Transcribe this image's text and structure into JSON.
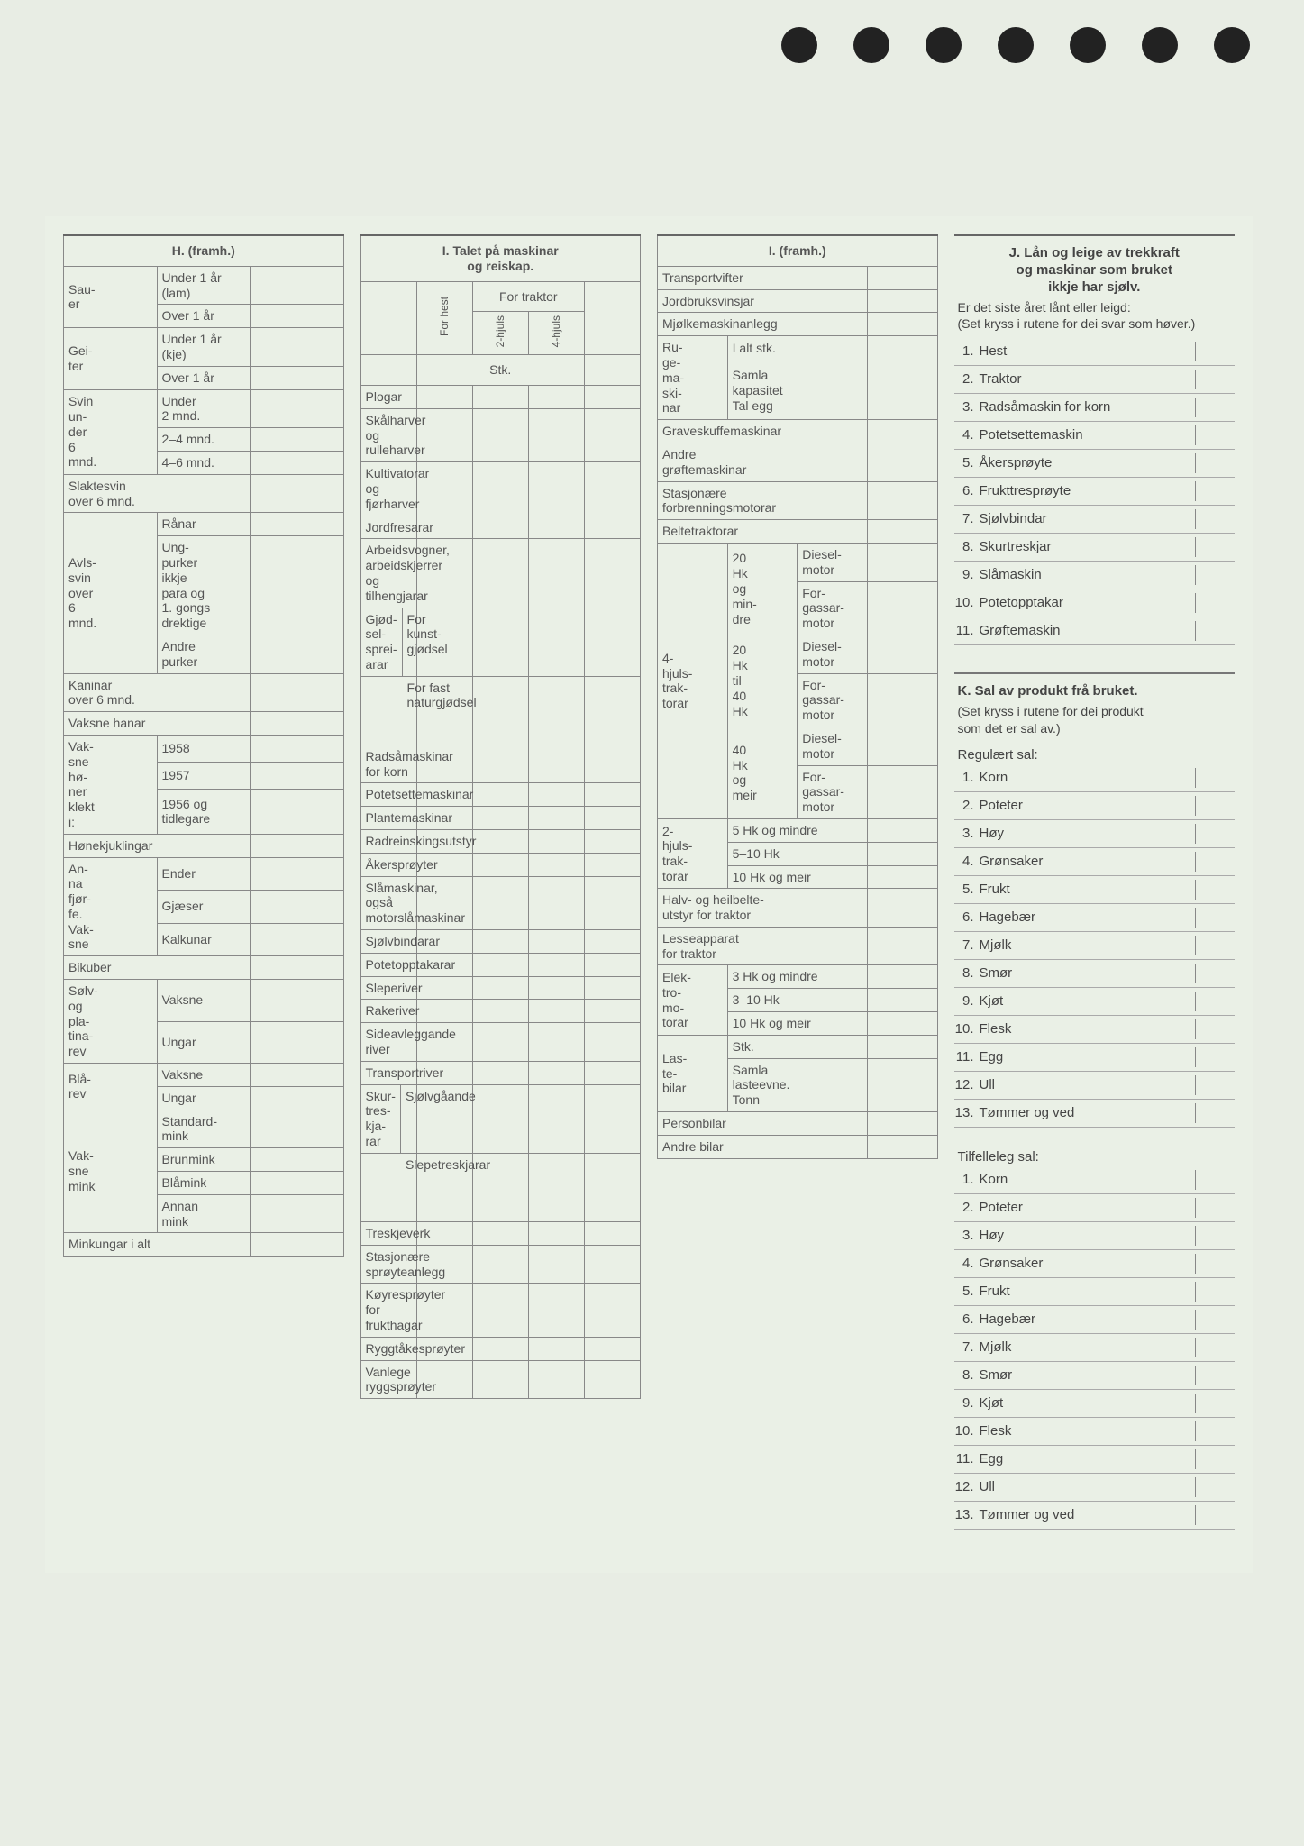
{
  "holes_count": 7,
  "H": {
    "title": "H. (framh.)",
    "rows": [
      {
        "g": "Sau-\ner",
        "span": 2,
        "label": "Under 1 år\n(lam)"
      },
      {
        "label": "Over 1 år"
      },
      {
        "g": "Gei-\nter",
        "span": 2,
        "label": "Under 1 år\n(kje)"
      },
      {
        "label": "Over 1 år"
      },
      {
        "g": "Svin\nun-\nder\n6\nmnd.",
        "span": 3,
        "label": "Under\n2 mnd."
      },
      {
        "label": "2–4 mnd."
      },
      {
        "label": "4–6 mnd."
      },
      {
        "full": "Slaktesvin\nover 6 mnd."
      },
      {
        "g": "Avls-\nsvin\nover\n6\nmnd.",
        "span": 3,
        "label": "Rånar"
      },
      {
        "label": "Ung-\npurker\nikkje\npara og\n1. gongs\ndrektige"
      },
      {
        "label": "Andre\npurker"
      },
      {
        "full": "Kaninar\nover 6 mnd."
      },
      {
        "full": "Vaksne hanar"
      },
      {
        "g": "Vak-\nsne\nhø-\nner\nklekt\ni:",
        "span": 3,
        "label": "1958"
      },
      {
        "label": "1957"
      },
      {
        "label": "1956 og\ntidlegare"
      },
      {
        "full": "Hønekjuklingar"
      },
      {
        "g": "An-\nna\nfjør-\nfe.\nVak-\nsne",
        "span": 3,
        "label": "Ender"
      },
      {
        "label": "Gjæser"
      },
      {
        "label": "Kalkunar"
      },
      {
        "full": "Bikuber"
      },
      {
        "g": "Sølv-\nog\npla-\ntina-\nrev",
        "span": 2,
        "label": "Vaksne"
      },
      {
        "label": "Ungar"
      },
      {
        "g": "Blå-\nrev",
        "span": 2,
        "label": "Vaksne"
      },
      {
        "label": "Ungar"
      },
      {
        "g": "Vak-\nsne\nmink",
        "span": 4,
        "label": "Standard-\nmink"
      },
      {
        "label": "Brunmink"
      },
      {
        "label": "Blåmink"
      },
      {
        "label": "Annan\nmink"
      },
      {
        "full": "Minkungar i alt"
      }
    ]
  },
  "I1": {
    "title": "I. Talet på maskinar\nog reiskap.",
    "head_for_traktor": "For\ntraktor",
    "head_for_hest": "For hest",
    "head_2hjuls": "2-hjuls",
    "head_4hjuls": "4-hjuls",
    "head_stk": "Stk.",
    "rows": [
      "Plogar",
      "Skålharver\nog rulleharver",
      "Kultivatorar\nog fjørharver",
      "Jordfresarar",
      "Arbeidsvogner,\narbeidskjerrer\nog tilhengjarar"
    ],
    "gjodsel": {
      "g": "Gjød-\nsel-\nsprei-\narar",
      "rows": [
        "For kunst-\ngjødsel",
        "For fast\nnaturgjødsel"
      ]
    },
    "rows2": [
      "Radsåmaskinar\nfor korn",
      "Potetsettemaskinar",
      "Plantemaskinar",
      "Radreinskingsutstyr",
      "Åkersprøyter",
      "Slåmaskinar, også\nmotorslåmaskinar",
      "Sjølvbindarar",
      "Potetopptakarar",
      "Sleperiver",
      "Rakeriver",
      "Sideavleggande\nriver",
      "Transportriver"
    ],
    "skurt": {
      "g": "Skur-\ntres-\nkja-\nrar",
      "rows": [
        "Sjølvgåande",
        "Slepetreskjarar"
      ]
    },
    "rows3": [
      "Treskjeverk",
      "Stasjonære\nsprøyteanlegg",
      "Køyresprøyter\nfor frukthagar",
      "Ryggtåkesprøyter",
      "Vanlege ryggsprøyter"
    ]
  },
  "I2": {
    "title": "I. (framh.)",
    "simple": [
      "Transportvifter",
      "Jordbruksvinsjar",
      "Mjølkemaskinanlegg"
    ],
    "ruge": {
      "g": "Ru-\nge-\nma-\nski-\nnar",
      "rows": [
        "I alt stk.",
        "Samla\nkapasitet\nTal egg"
      ]
    },
    "simple2": [
      "Graveskuffemaskinar",
      "Andre\ngrøftemaskinar",
      "Stasjonære\nforbrenningsmotorar",
      "Beltetraktorar"
    ],
    "trak4": {
      "g": "4-\nhjuls-\ntrak-\ntorar",
      "groups": [
        {
          "sub": "20\nHk\nog\nmin-\ndre",
          "rows": [
            "Diesel-\nmotor",
            "For-\ngassar-\nmotor"
          ]
        },
        {
          "sub": "20\nHk\ntil\n40\nHk",
          "rows": [
            "Diesel-\nmotor",
            "For-\ngassar-\nmotor"
          ]
        },
        {
          "sub": "40\nHk\nog\nmeir",
          "rows": [
            "Diesel-\nmotor",
            "For-\ngassar-\nmotor"
          ]
        }
      ]
    },
    "trak2": {
      "g": "2-\nhjuls-\ntrak-\ntorar",
      "rows": [
        "5 Hk og mindre",
        "5–10 Hk",
        "10 Hk og meir"
      ]
    },
    "simple3": [
      "Halv- og heilbelte-\nutstyr for traktor",
      "Lesseapparat\nfor traktor"
    ],
    "elek": {
      "g": "Elek-\ntro-\nmo-\ntorar",
      "rows": [
        "3 Hk og mindre",
        "3–10 Hk",
        "10 Hk og meir"
      ]
    },
    "laste": {
      "g": "Las-\nte-\nbilar",
      "rows": [
        "Stk.",
        "Samla\nlasteevne.\nTonn"
      ]
    },
    "simple4": [
      "Personbilar",
      "Andre bilar"
    ]
  },
  "J": {
    "title": "J. Lån og leige av trekkraft\nog maskinar som bruket\nikkje har sjølv.",
    "sub": "Er det siste året lånt eller leigd:\n(Set kryss i rutene for dei svar som høver.)",
    "items": [
      "Hest",
      "Traktor",
      "Radsåmaskin for korn",
      "Potetsettemaskin",
      "Åkersprøyte",
      "Frukttresprøyte",
      "Sjølvbindar",
      "Skurtreskjar",
      "Slåmaskin",
      "Potetopptakar",
      "Grøftemaskin"
    ]
  },
  "K": {
    "title": "K. Sal av produkt frå bruket.",
    "sub": "(Set kryss i rutene for dei produkt\nsom det er sal av.)",
    "reg_label": "Regulært sal:",
    "reg_items": [
      "Korn",
      "Poteter",
      "Høy",
      "Grønsaker",
      "Frukt",
      "Hagebær",
      "Mjølk",
      "Smør",
      "Kjøt",
      "Flesk",
      "Egg",
      "Ull",
      "Tømmer og ved"
    ],
    "til_label": "Tilfelleleg sal:",
    "til_items": [
      "Korn",
      "Poteter",
      "Høy",
      "Grønsaker",
      "Frukt",
      "Hagebær",
      "Mjølk",
      "Smør",
      "Kjøt",
      "Flesk",
      "Egg",
      "Ull",
      "Tømmer og ved"
    ]
  }
}
